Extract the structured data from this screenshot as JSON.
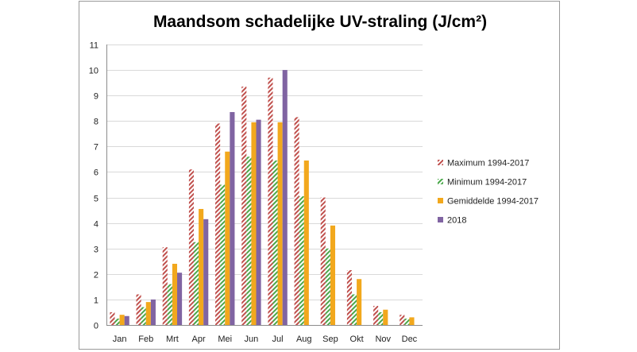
{
  "chart_data": {
    "type": "bar",
    "title": "Maandsom schadelijke UV-straling (J/cm²)",
    "categories": [
      "Jan",
      "Feb",
      "Mrt",
      "Apr",
      "Mei",
      "Jun",
      "Jul",
      "Aug",
      "Sep",
      "Okt",
      "Nov",
      "Dec"
    ],
    "ylim": [
      0,
      11
    ],
    "yticks": [
      "0",
      "1",
      "2",
      "3",
      "4",
      "5",
      "6",
      "7",
      "8",
      "9",
      "10",
      "11"
    ],
    "grid": true,
    "legend_position": "right",
    "series": [
      {
        "name": "Maximum 1994-2017",
        "color": "#c0504d",
        "pattern": "hatch",
        "values": [
          0.5,
          1.2,
          3.05,
          6.1,
          7.9,
          9.35,
          9.7,
          8.15,
          5.0,
          2.15,
          0.75,
          0.4
        ]
      },
      {
        "name": "Minimum 1994-2017",
        "color": "#4aa84a",
        "pattern": "hatch",
        "values": [
          0.25,
          0.7,
          1.6,
          3.25,
          5.5,
          6.6,
          6.45,
          5.05,
          3.0,
          1.2,
          0.5,
          0.25
        ]
      },
      {
        "name": "Gemiddelde 1994-2017",
        "color": "#f2a81d",
        "pattern": "solid",
        "values": [
          0.4,
          0.9,
          2.4,
          4.55,
          6.8,
          7.95,
          7.95,
          6.45,
          3.9,
          1.8,
          0.6,
          0.3
        ]
      },
      {
        "name": "2018",
        "color": "#8064a2",
        "pattern": "solid",
        "values": [
          0.35,
          1.0,
          2.05,
          4.15,
          8.35,
          8.05,
          10.0,
          null,
          null,
          null,
          null,
          null
        ]
      }
    ]
  }
}
